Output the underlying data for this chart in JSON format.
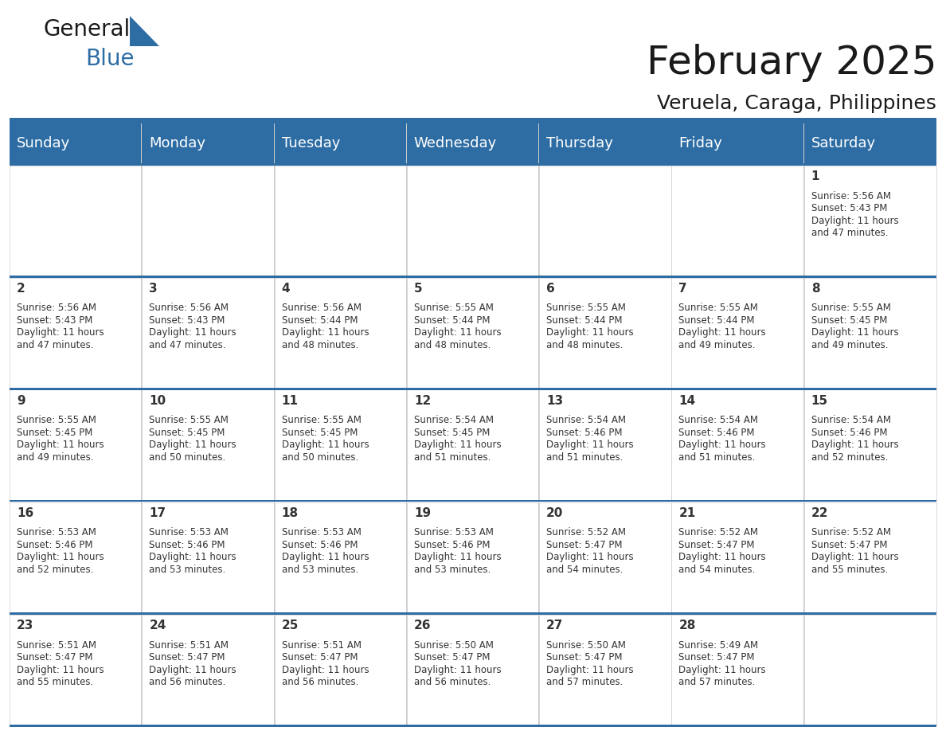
{
  "title": "February 2025",
  "subtitle": "Veruela, Caraga, Philippines",
  "header_color": "#2E6DA4",
  "header_text_color": "#FFFFFF",
  "cell_bg_color": "#FFFFFF",
  "border_color": "#2E6DA4",
  "text_color": "#333333",
  "day_names": [
    "Sunday",
    "Monday",
    "Tuesday",
    "Wednesday",
    "Thursday",
    "Friday",
    "Saturday"
  ],
  "title_fontsize": 36,
  "subtitle_fontsize": 18,
  "header_fontsize": 13,
  "day_num_fontsize": 11,
  "cell_text_fontsize": 8.5,
  "logo_general_fontsize": 20,
  "logo_blue_fontsize": 20,
  "calendar": [
    [
      {
        "day": "",
        "sunrise": "",
        "sunset": "",
        "daylight": ""
      },
      {
        "day": "",
        "sunrise": "",
        "sunset": "",
        "daylight": ""
      },
      {
        "day": "",
        "sunrise": "",
        "sunset": "",
        "daylight": ""
      },
      {
        "day": "",
        "sunrise": "",
        "sunset": "",
        "daylight": ""
      },
      {
        "day": "",
        "sunrise": "",
        "sunset": "",
        "daylight": ""
      },
      {
        "day": "",
        "sunrise": "",
        "sunset": "",
        "daylight": ""
      },
      {
        "day": "1",
        "sunrise": "5:56 AM",
        "sunset": "5:43 PM",
        "daylight": "11 hours and 47 minutes."
      }
    ],
    [
      {
        "day": "2",
        "sunrise": "5:56 AM",
        "sunset": "5:43 PM",
        "daylight": "11 hours and 47 minutes."
      },
      {
        "day": "3",
        "sunrise": "5:56 AM",
        "sunset": "5:43 PM",
        "daylight": "11 hours and 47 minutes."
      },
      {
        "day": "4",
        "sunrise": "5:56 AM",
        "sunset": "5:44 PM",
        "daylight": "11 hours and 48 minutes."
      },
      {
        "day": "5",
        "sunrise": "5:55 AM",
        "sunset": "5:44 PM",
        "daylight": "11 hours and 48 minutes."
      },
      {
        "day": "6",
        "sunrise": "5:55 AM",
        "sunset": "5:44 PM",
        "daylight": "11 hours and 48 minutes."
      },
      {
        "day": "7",
        "sunrise": "5:55 AM",
        "sunset": "5:44 PM",
        "daylight": "11 hours and 49 minutes."
      },
      {
        "day": "8",
        "sunrise": "5:55 AM",
        "sunset": "5:45 PM",
        "daylight": "11 hours and 49 minutes."
      }
    ],
    [
      {
        "day": "9",
        "sunrise": "5:55 AM",
        "sunset": "5:45 PM",
        "daylight": "11 hours and 49 minutes."
      },
      {
        "day": "10",
        "sunrise": "5:55 AM",
        "sunset": "5:45 PM",
        "daylight": "11 hours and 50 minutes."
      },
      {
        "day": "11",
        "sunrise": "5:55 AM",
        "sunset": "5:45 PM",
        "daylight": "11 hours and 50 minutes."
      },
      {
        "day": "12",
        "sunrise": "5:54 AM",
        "sunset": "5:45 PM",
        "daylight": "11 hours and 51 minutes."
      },
      {
        "day": "13",
        "sunrise": "5:54 AM",
        "sunset": "5:46 PM",
        "daylight": "11 hours and 51 minutes."
      },
      {
        "day": "14",
        "sunrise": "5:54 AM",
        "sunset": "5:46 PM",
        "daylight": "11 hours and 51 minutes."
      },
      {
        "day": "15",
        "sunrise": "5:54 AM",
        "sunset": "5:46 PM",
        "daylight": "11 hours and 52 minutes."
      }
    ],
    [
      {
        "day": "16",
        "sunrise": "5:53 AM",
        "sunset": "5:46 PM",
        "daylight": "11 hours and 52 minutes."
      },
      {
        "day": "17",
        "sunrise": "5:53 AM",
        "sunset": "5:46 PM",
        "daylight": "11 hours and 53 minutes."
      },
      {
        "day": "18",
        "sunrise": "5:53 AM",
        "sunset": "5:46 PM",
        "daylight": "11 hours and 53 minutes."
      },
      {
        "day": "19",
        "sunrise": "5:53 AM",
        "sunset": "5:46 PM",
        "daylight": "11 hours and 53 minutes."
      },
      {
        "day": "20",
        "sunrise": "5:52 AM",
        "sunset": "5:47 PM",
        "daylight": "11 hours and 54 minutes."
      },
      {
        "day": "21",
        "sunrise": "5:52 AM",
        "sunset": "5:47 PM",
        "daylight": "11 hours and 54 minutes."
      },
      {
        "day": "22",
        "sunrise": "5:52 AM",
        "sunset": "5:47 PM",
        "daylight": "11 hours and 55 minutes."
      }
    ],
    [
      {
        "day": "23",
        "sunrise": "5:51 AM",
        "sunset": "5:47 PM",
        "daylight": "11 hours and 55 minutes."
      },
      {
        "day": "24",
        "sunrise": "5:51 AM",
        "sunset": "5:47 PM",
        "daylight": "11 hours and 56 minutes."
      },
      {
        "day": "25",
        "sunrise": "5:51 AM",
        "sunset": "5:47 PM",
        "daylight": "11 hours and 56 minutes."
      },
      {
        "day": "26",
        "sunrise": "5:50 AM",
        "sunset": "5:47 PM",
        "daylight": "11 hours and 56 minutes."
      },
      {
        "day": "27",
        "sunrise": "5:50 AM",
        "sunset": "5:47 PM",
        "daylight": "11 hours and 57 minutes."
      },
      {
        "day": "28",
        "sunrise": "5:49 AM",
        "sunset": "5:47 PM",
        "daylight": "11 hours and 57 minutes."
      },
      {
        "day": "",
        "sunrise": "",
        "sunset": "",
        "daylight": ""
      }
    ]
  ]
}
